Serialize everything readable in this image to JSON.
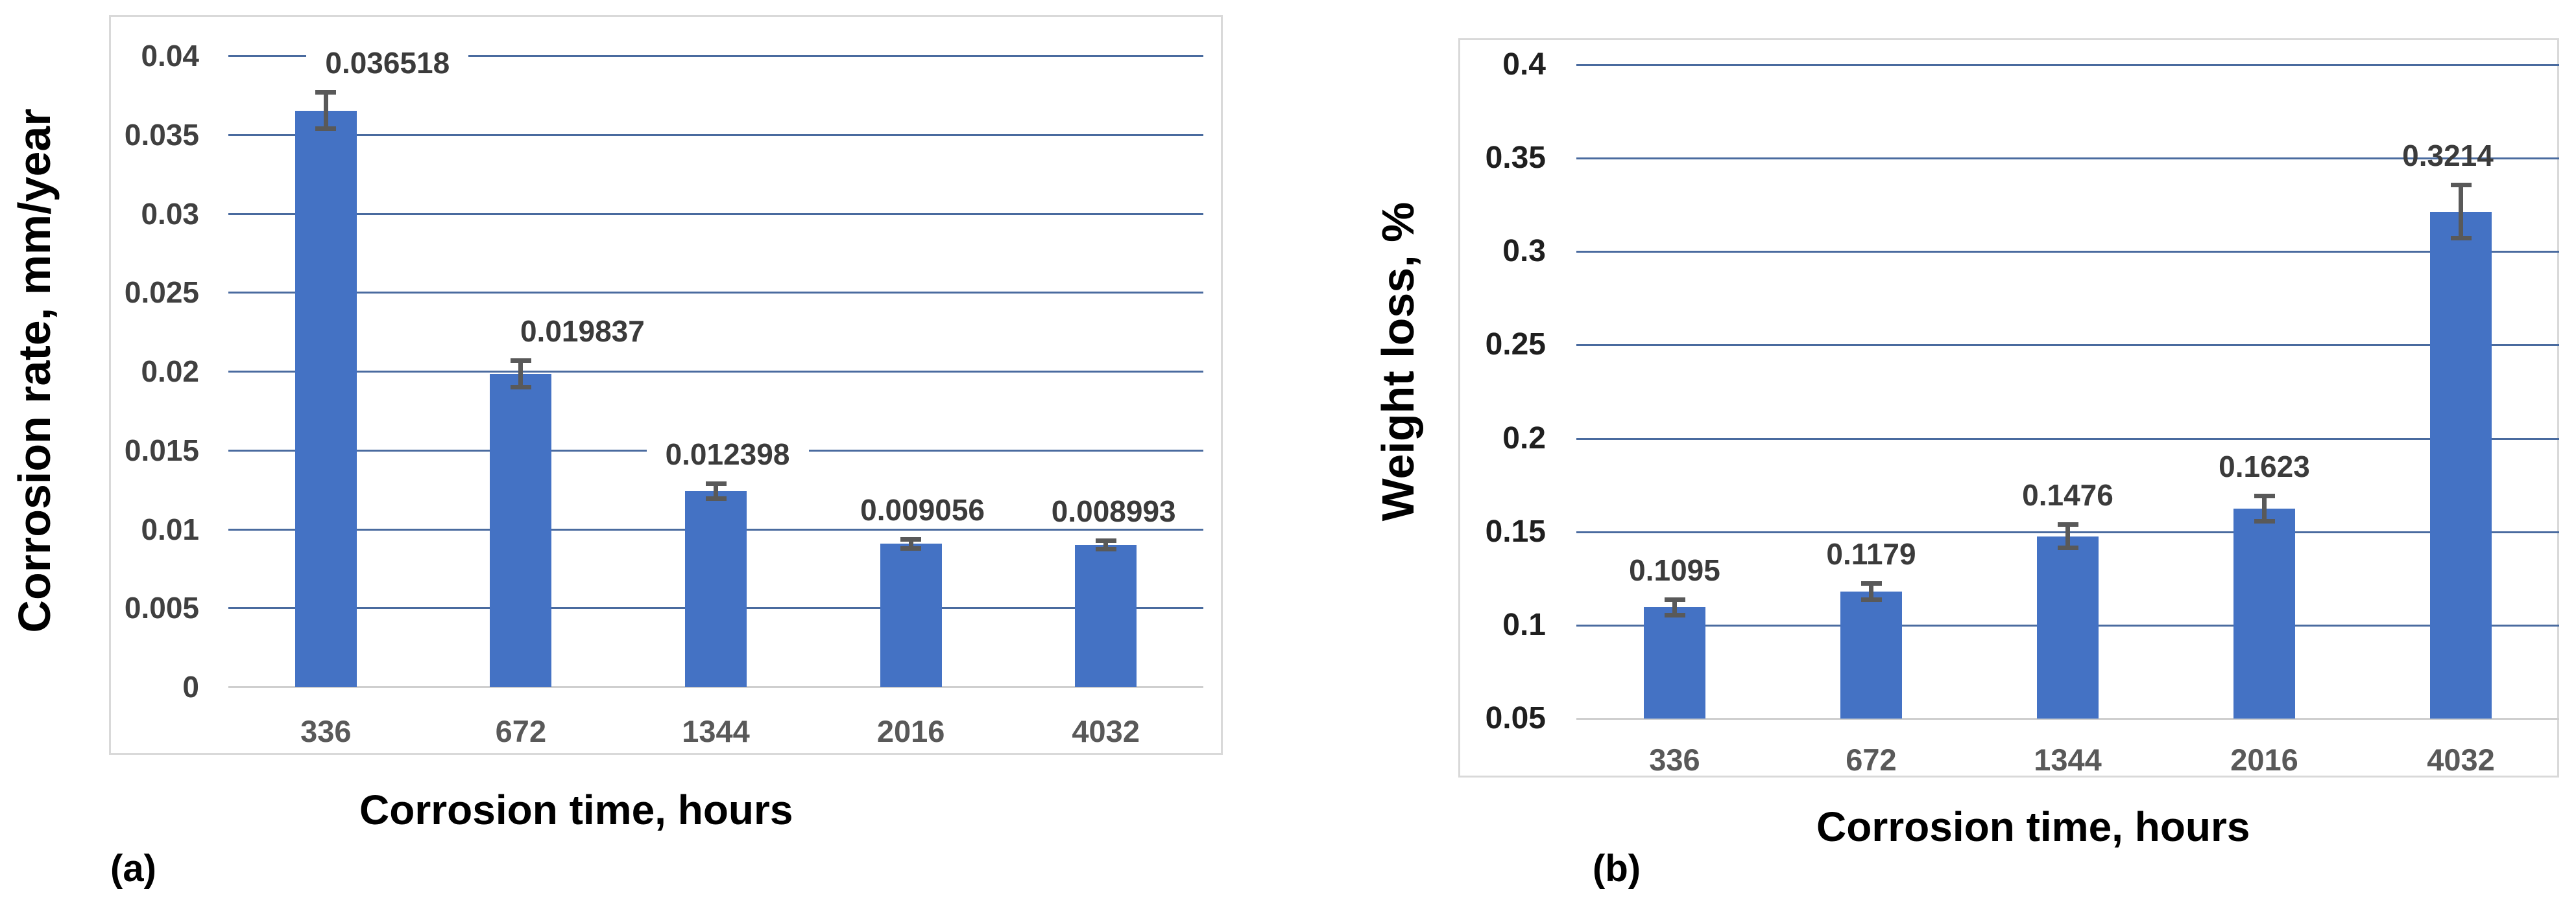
{
  "figure": {
    "background": "#ffffff",
    "bar_color": "#4472C4",
    "gridline_color": "#4a6b9f",
    "axis_line_color": "#cfcfcf",
    "error_bar_color": "#595959"
  },
  "chart_data": [
    {
      "type": "bar",
      "panel_label": "(a)",
      "title": "",
      "xlabel": "Corrosion time, hours",
      "ylabel": "Corrosion rate, mm/year",
      "categories": [
        "336",
        "672",
        "1344",
        "2016",
        "4032"
      ],
      "values": [
        0.036518,
        0.019837,
        0.012398,
        0.009056,
        0.008993
      ],
      "data_labels": [
        "0.036518",
        "0.019837",
        "0.012398",
        "0.009056",
        "0.008993"
      ],
      "error_bars": [
        0.0013,
        0.001,
        0.0006,
        0.00045,
        0.0004
      ],
      "ylim": [
        0,
        0.04
      ],
      "y_tick_labels": [
        "0.04",
        "0.035",
        "0.03",
        "0.025",
        "0.02",
        "0.015",
        "0.01",
        "0.005",
        "0"
      ],
      "grid": true,
      "legend": false,
      "bar_color": "#4472C4",
      "gridline_color": "#4a6b9f"
    },
    {
      "type": "bar",
      "panel_label": "(b)",
      "title": "",
      "xlabel": "Corrosion time, hours",
      "ylabel": "Weight loss, %",
      "categories": [
        "336",
        "672",
        "1344",
        "2016",
        "4032"
      ],
      "values": [
        0.1095,
        0.1179,
        0.1476,
        0.1623,
        0.3214
      ],
      "data_labels": [
        "0.1095",
        "0.1179",
        "0.1476",
        "0.1623",
        "0.3214"
      ],
      "error_bars": [
        0.0055,
        0.0055,
        0.0075,
        0.008,
        0.0155
      ],
      "ylim": [
        0.05,
        0.4
      ],
      "y_tick_labels": [
        "0.4",
        "0.35",
        "0.3",
        "0.25",
        "0.2",
        "0.15",
        "0.1",
        "0.05"
      ],
      "grid": true,
      "legend": false,
      "bar_color": "#4472C4",
      "gridline_color": "#4a6b9f"
    }
  ]
}
